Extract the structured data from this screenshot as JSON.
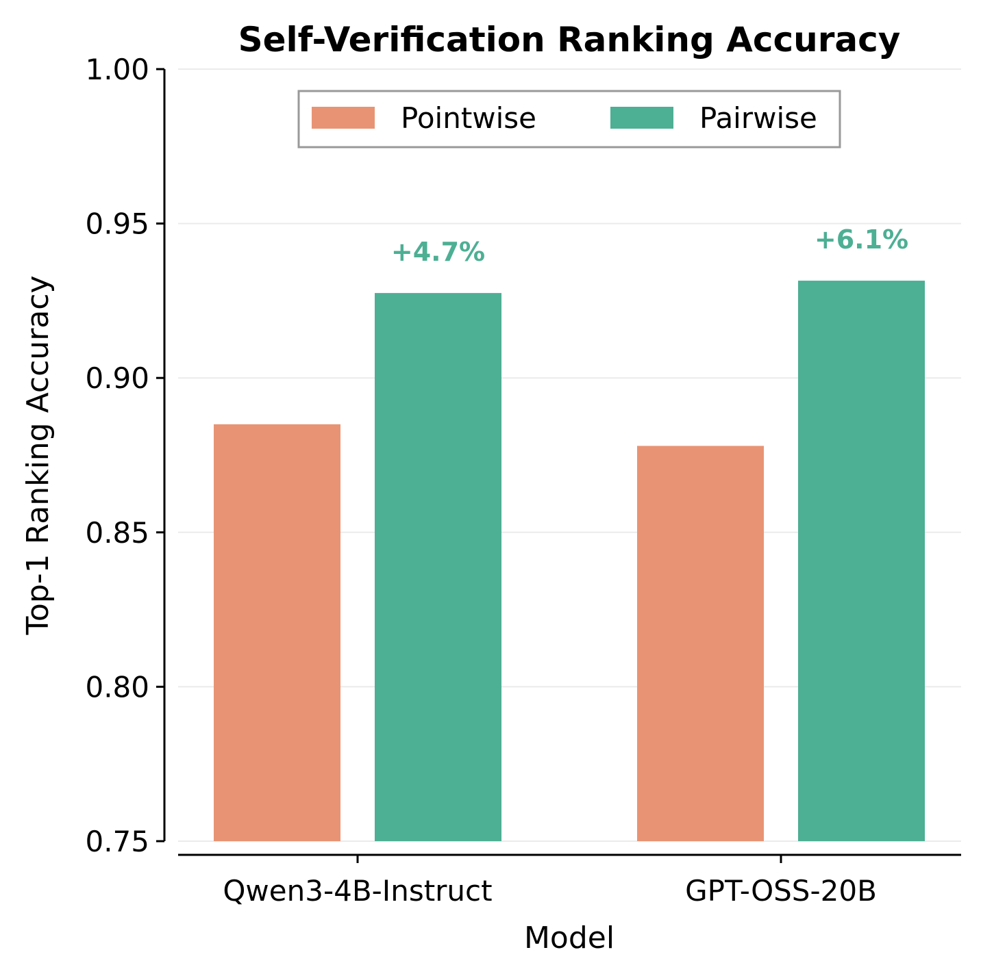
{
  "chart_data": {
    "type": "bar",
    "title": "Self-Verification Ranking Accuracy",
    "xlabel": "Model",
    "ylabel": "Top-1 Ranking Accuracy",
    "categories": [
      "Qwen3-4B-Instruct",
      "GPT-OSS-20B"
    ],
    "series": [
      {
        "name": "Pointwise",
        "color": "#e89474",
        "values": [
          0.885,
          0.878
        ]
      },
      {
        "name": "Pairwise",
        "color": "#4daf93",
        "values": [
          0.9275,
          0.9315
        ]
      }
    ],
    "annotations": [
      "+4.7%",
      "+6.1%"
    ],
    "annotation_color": "#4daf93",
    "ylim": [
      0.75,
      1.0
    ],
    "yticks": [
      "0.75",
      "0.80",
      "0.85",
      "0.90",
      "0.95",
      "1.00"
    ],
    "grid": true,
    "legend_placement": "top-center"
  }
}
